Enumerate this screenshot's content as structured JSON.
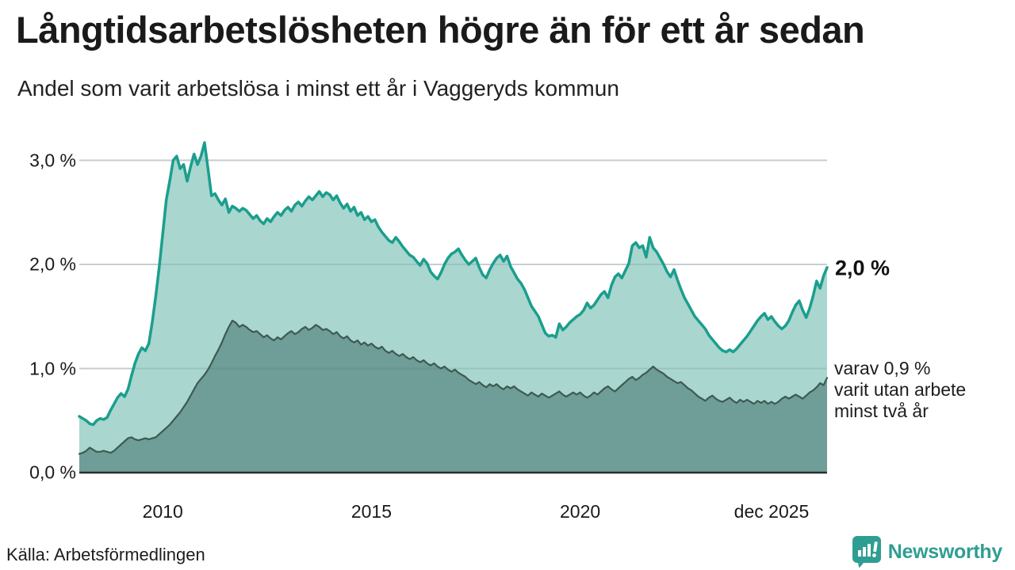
{
  "title": "Långtidsarbetslösheten högre än för ett år sedan",
  "subtitle": "Andel som varit arbetslösa i minst ett år i Vaggeryds kommun",
  "source": "Källa: Arbetsförmedlingen",
  "branding": {
    "name": "Newsworthy",
    "color": "#2f9e92",
    "icon": "bar-chart-speech-bubble-icon"
  },
  "annotations": {
    "latest_total": "2,0 %",
    "secondary": "varav 0,9 %\nvarit utan arbete\nminst två år"
  },
  "axes": {
    "y_ticks": [
      {
        "value": 0,
        "label": "0,0 %"
      },
      {
        "value": 1,
        "label": "1,0 %"
      },
      {
        "value": 2,
        "label": "2,0 %"
      },
      {
        "value": 3,
        "label": "3,0 %"
      }
    ],
    "x_ticks": [
      {
        "year": 2010,
        "label": "2010"
      },
      {
        "year": 2015,
        "label": "2015"
      },
      {
        "year": 2020,
        "label": "2020"
      },
      {
        "year": 2025.9167,
        "label": "dec 2025",
        "end_tick": true
      }
    ]
  },
  "colors": {
    "total_line": "#1b9e8e",
    "total_fill": "#a9d6ce",
    "two_year_line": "#3d5a54",
    "two_year_fill": "#6f9d97",
    "gridline": "#dde1e6",
    "gridline_overlay": "rgba(70,95,100,0.15)",
    "baseline": "#2e2e2e"
  },
  "chart_data": {
    "type": "area",
    "title": "Långtidsarbetslösheten högre än för ett år sedan",
    "subtitle": "Andel som varit arbetslösa i minst ett år i Vaggeryds kommun",
    "unit": "%",
    "x_start": 2008.0,
    "x_end": 2025.9167,
    "frequency": "monthly",
    "ylim": [
      0,
      3.3
    ],
    "grid": "horizontal",
    "legend_position": "right-annotations",
    "series": [
      {
        "name": "Andel arbetslösa minst ett år",
        "latest_value": 2.0,
        "values": [
          0.54,
          0.52,
          0.5,
          0.47,
          0.46,
          0.5,
          0.52,
          0.51,
          0.53,
          0.6,
          0.66,
          0.72,
          0.76,
          0.73,
          0.8,
          0.93,
          1.05,
          1.14,
          1.2,
          1.17,
          1.24,
          1.45,
          1.7,
          1.98,
          2.3,
          2.62,
          2.8,
          3.0,
          3.04,
          2.92,
          2.96,
          2.8,
          2.94,
          3.06,
          2.96,
          3.04,
          3.17,
          2.92,
          2.66,
          2.68,
          2.62,
          2.57,
          2.63,
          2.5,
          2.56,
          2.54,
          2.51,
          2.54,
          2.52,
          2.48,
          2.44,
          2.47,
          2.42,
          2.39,
          2.44,
          2.41,
          2.46,
          2.5,
          2.47,
          2.52,
          2.55,
          2.51,
          2.57,
          2.6,
          2.56,
          2.61,
          2.65,
          2.62,
          2.66,
          2.7,
          2.65,
          2.69,
          2.67,
          2.62,
          2.66,
          2.59,
          2.54,
          2.58,
          2.51,
          2.55,
          2.47,
          2.5,
          2.43,
          2.46,
          2.41,
          2.43,
          2.36,
          2.31,
          2.27,
          2.23,
          2.21,
          2.26,
          2.22,
          2.17,
          2.13,
          2.09,
          2.07,
          2.03,
          1.99,
          2.05,
          2.01,
          1.93,
          1.89,
          1.86,
          1.92,
          2.0,
          2.06,
          2.1,
          2.12,
          2.15,
          2.09,
          2.04,
          2.0,
          2.03,
          2.06,
          1.97,
          1.9,
          1.87,
          1.95,
          2.01,
          2.06,
          2.09,
          2.03,
          2.08,
          1.98,
          1.92,
          1.86,
          1.82,
          1.76,
          1.68,
          1.6,
          1.55,
          1.5,
          1.42,
          1.34,
          1.31,
          1.32,
          1.3,
          1.43,
          1.37,
          1.4,
          1.44,
          1.47,
          1.5,
          1.52,
          1.56,
          1.63,
          1.58,
          1.61,
          1.66,
          1.71,
          1.74,
          1.68,
          1.8,
          1.88,
          1.91,
          1.87,
          1.94,
          2.01,
          2.18,
          2.21,
          2.16,
          2.18,
          2.07,
          2.26,
          2.16,
          2.12,
          2.06,
          2.0,
          1.93,
          1.88,
          1.95,
          1.85,
          1.76,
          1.68,
          1.62,
          1.56,
          1.5,
          1.46,
          1.42,
          1.38,
          1.32,
          1.28,
          1.24,
          1.2,
          1.17,
          1.16,
          1.18,
          1.16,
          1.19,
          1.23,
          1.27,
          1.31,
          1.36,
          1.41,
          1.46,
          1.5,
          1.53,
          1.47,
          1.5,
          1.45,
          1.41,
          1.38,
          1.41,
          1.46,
          1.54,
          1.61,
          1.65,
          1.56,
          1.49,
          1.58,
          1.7,
          1.84,
          1.77,
          1.89,
          1.97
        ]
      },
      {
        "name": "varav arbetslösa minst två år",
        "latest_value": 0.9,
        "values": [
          0.18,
          0.19,
          0.21,
          0.24,
          0.22,
          0.2,
          0.2,
          0.21,
          0.2,
          0.19,
          0.21,
          0.24,
          0.27,
          0.3,
          0.33,
          0.34,
          0.32,
          0.31,
          0.32,
          0.33,
          0.32,
          0.33,
          0.34,
          0.37,
          0.4,
          0.43,
          0.46,
          0.5,
          0.54,
          0.58,
          0.63,
          0.68,
          0.74,
          0.8,
          0.86,
          0.9,
          0.94,
          0.99,
          1.05,
          1.12,
          1.18,
          1.25,
          1.33,
          1.4,
          1.46,
          1.44,
          1.4,
          1.42,
          1.4,
          1.37,
          1.35,
          1.36,
          1.33,
          1.3,
          1.32,
          1.29,
          1.27,
          1.3,
          1.28,
          1.31,
          1.34,
          1.36,
          1.33,
          1.35,
          1.38,
          1.4,
          1.37,
          1.39,
          1.42,
          1.4,
          1.37,
          1.38,
          1.36,
          1.33,
          1.35,
          1.31,
          1.29,
          1.31,
          1.27,
          1.25,
          1.27,
          1.23,
          1.25,
          1.22,
          1.24,
          1.21,
          1.19,
          1.21,
          1.17,
          1.15,
          1.17,
          1.14,
          1.12,
          1.14,
          1.11,
          1.09,
          1.11,
          1.08,
          1.06,
          1.08,
          1.05,
          1.03,
          1.05,
          1.02,
          1.0,
          1.02,
          0.99,
          0.97,
          0.99,
          0.96,
          0.94,
          0.92,
          0.89,
          0.87,
          0.85,
          0.87,
          0.84,
          0.82,
          0.85,
          0.83,
          0.85,
          0.82,
          0.8,
          0.83,
          0.81,
          0.83,
          0.8,
          0.78,
          0.76,
          0.74,
          0.77,
          0.75,
          0.73,
          0.76,
          0.74,
          0.72,
          0.74,
          0.76,
          0.78,
          0.75,
          0.73,
          0.75,
          0.77,
          0.75,
          0.77,
          0.74,
          0.72,
          0.74,
          0.77,
          0.75,
          0.78,
          0.81,
          0.83,
          0.8,
          0.78,
          0.81,
          0.84,
          0.87,
          0.9,
          0.92,
          0.89,
          0.91,
          0.94,
          0.96,
          0.99,
          1.02,
          0.99,
          0.97,
          0.95,
          0.92,
          0.9,
          0.88,
          0.86,
          0.87,
          0.84,
          0.81,
          0.79,
          0.76,
          0.73,
          0.71,
          0.69,
          0.72,
          0.74,
          0.71,
          0.69,
          0.68,
          0.7,
          0.72,
          0.69,
          0.67,
          0.7,
          0.68,
          0.7,
          0.68,
          0.66,
          0.69,
          0.67,
          0.69,
          0.66,
          0.68,
          0.66,
          0.68,
          0.71,
          0.73,
          0.71,
          0.73,
          0.75,
          0.73,
          0.71,
          0.74,
          0.77,
          0.79,
          0.82,
          0.86,
          0.84,
          0.91
        ]
      }
    ]
  }
}
